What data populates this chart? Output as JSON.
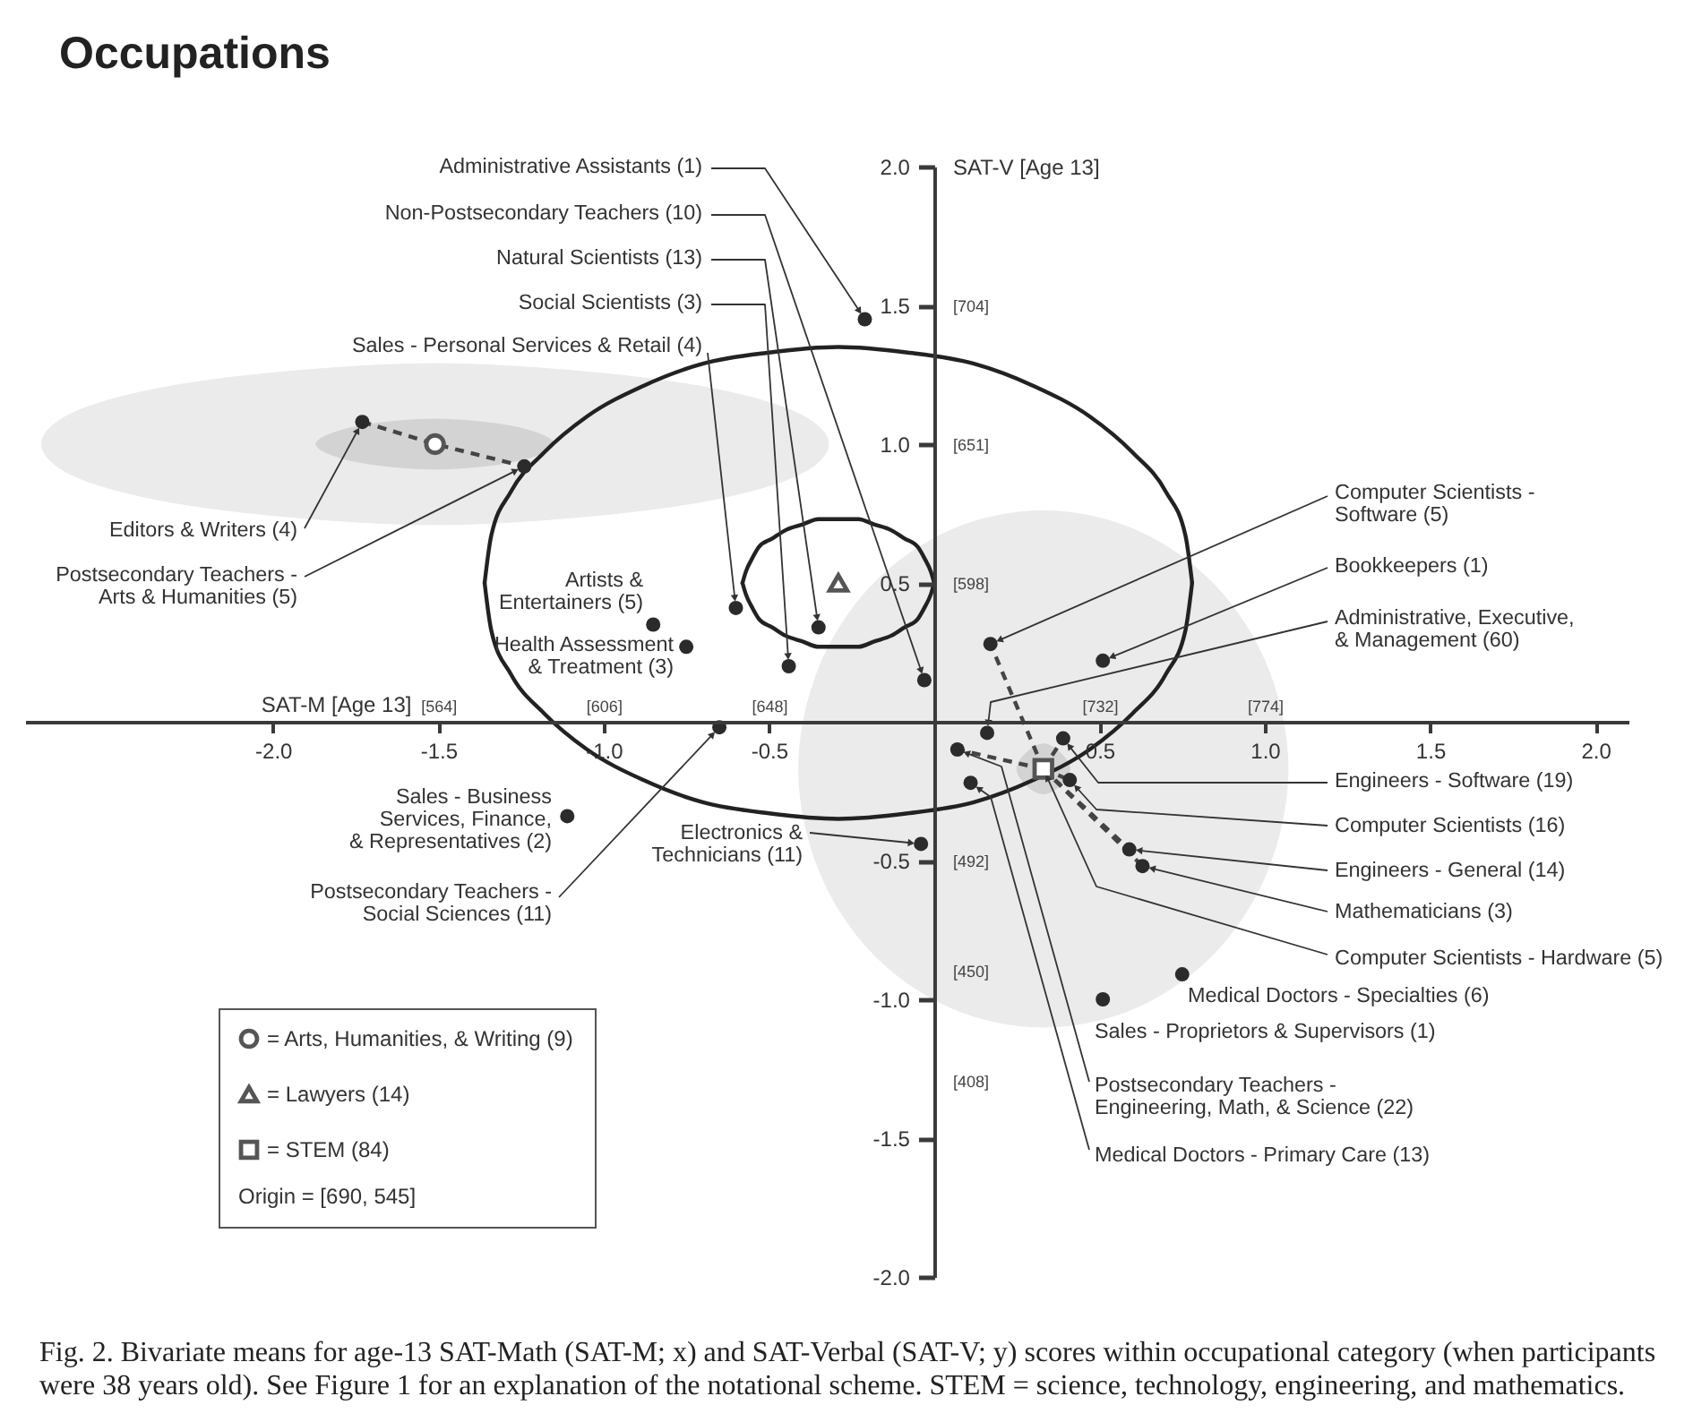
{
  "chart_data": {
    "type": "scatter",
    "title": "Occupations",
    "xlabel": "SAT-M [Age 13]",
    "y2label": "SAT-V [Age 13]",
    "legend": "bottom left",
    "legend_title": "Origin = [690, 545]",
    "xlim": [
      -2.75,
      2.1
    ],
    "xticks": [
      {
        "value": -2,
        "label": "-2.0"
      },
      -1.5,
      {
        "value": -1,
        "label": "-1.0"
      },
      -0.5,
      0.5,
      {
        "value": 1,
        "label": "1.0"
      },
      1.5,
      {
        "value": 2,
        "label": "2.0"
      }
    ],
    "ylim": [
      -2,
      2
    ],
    "yticks": [
      {
        "value": 2,
        "label": "2.0"
      },
      1.5,
      {
        "value": 1,
        "label": "1.0"
      },
      0.5,
      -0.5,
      {
        "value": -1,
        "label": "-1.0"
      },
      -1.5,
      {
        "value": -2,
        "label": "-2.0"
      }
    ],
    "x2lim": [
      459,
      866.4
    ],
    "x2ticks": [
      {
        "value": 564,
        "label": "[564]"
      },
      {
        "value": 606,
        "label": "[606]"
      },
      {
        "value": 648,
        "label": "[648]"
      },
      {
        "value": 732,
        "label": "[732]"
      },
      {
        "value": 774,
        "label": "[774]"
      }
    ],
    "y2lim": [
      333,
      757
    ],
    "y2ticks": [
      {
        "value": 704,
        "label": "[704]"
      },
      {
        "value": 651,
        "label": "[651]"
      },
      {
        "value": 598,
        "label": "[598]"
      },
      {
        "value": 492,
        "label": "[492]"
      },
      {
        "value": 450,
        "label": "[450]"
      },
      {
        "value": 408,
        "label": "[408]"
      }
    ],
    "series": [
      {
        "type": "area",
        "color": "#ebebeb",
        "x": [
          -0.32,
          -0.41,
          -0.67,
          -1.05,
          -1.51,
          -1.97,
          -2.35,
          -2.61,
          -2.7,
          -2.61,
          -2.35,
          -1.97,
          -1.51,
          -1.05,
          -0.67,
          -0.41,
          -0.32
        ],
        "values": [
          1.0,
          1.11,
          1.2,
          1.26,
          1.29,
          1.26,
          1.2,
          1.11,
          1.0,
          0.89,
          0.8,
          0.74,
          0.71,
          0.74,
          0.8,
          0.89,
          1.0
        ]
      },
      {
        "type": "area",
        "color": "#d3d3d3",
        "x": [
          -1.15,
          -1.18,
          -1.26,
          -1.37,
          -1.51,
          -1.65,
          -1.76,
          -1.84,
          -1.87,
          -1.84,
          -1.76,
          -1.65,
          -1.51,
          -1.37,
          -1.26,
          -1.18,
          -1.15
        ],
        "values": [
          1.0,
          1.03,
          1.06,
          1.08,
          1.09,
          1.08,
          1.06,
          1.03,
          1.0,
          0.97,
          0.94,
          0.92,
          0.91,
          0.92,
          0.94,
          0.97,
          1.0
        ]
      },
      {
        "type": "area",
        "color": "#ebebeb",
        "x": [
          1.07,
          1.01,
          0.85,
          0.61,
          0.33,
          0.05,
          -0.19,
          -0.35,
          -0.41,
          -0.35,
          -0.19,
          0.05,
          0.33,
          0.61,
          0.85,
          1.01,
          1.07
        ],
        "values": [
          -0.17,
          0.19,
          0.49,
          0.69,
          0.76,
          0.69,
          0.49,
          0.19,
          -0.17,
          -0.53,
          -0.83,
          -1.03,
          -1.1,
          -1.03,
          -0.83,
          -0.53,
          -0.17
        ]
      },
      {
        "type": "area",
        "color": "#d3d3d3",
        "x": [
          0.41,
          0.38,
          0.33,
          0.28,
          0.25,
          0.28,
          0.33,
          0.38,
          0.41
        ],
        "values": [
          -0.17,
          -0.11,
          -0.08,
          -0.11,
          -0.17,
          -0.23,
          -0.26,
          -0.23,
          -0.17
        ]
      },
      {
        "type": "line",
        "color": "#222222",
        "line_style": "solid",
        "marker": "none",
        "x": [
          -1.36,
          -1.34,
          -1.28,
          -1.18,
          -1.05,
          -0.88,
          -0.7,
          -0.5,
          -0.29,
          -0.08,
          0.12,
          0.3,
          0.47,
          0.6,
          0.7,
          0.76,
          0.78
        ],
        "values": [
          0.5,
          0.67,
          0.83,
          0.97,
          1.1,
          1.21,
          1.29,
          1.33,
          1.35,
          1.33,
          1.29,
          1.21,
          1.1,
          0.97,
          0.83,
          0.67,
          0.5
        ]
      },
      {
        "type": "line",
        "color": "#222222",
        "line_style": "solid",
        "marker": "none",
        "x": [
          -1.36,
          -1.34,
          -1.28,
          -1.18,
          -1.05,
          -0.88,
          -0.7,
          -0.5,
          -0.29,
          -0.08,
          0.12,
          0.3,
          0.47,
          0.6,
          0.7,
          0.76,
          0.78
        ],
        "values": [
          0.5,
          0.33,
          0.17,
          0.03,
          -0.1,
          -0.21,
          -0.29,
          -0.33,
          -0.35,
          -0.33,
          -0.29,
          -0.21,
          -0.1,
          0.03,
          0.17,
          0.33,
          0.5
        ]
      },
      {
        "type": "line",
        "color": "#222222",
        "line_style": "solid",
        "marker": "none",
        "x": [
          -0.58,
          -0.57,
          -0.55,
          -0.53,
          -0.49,
          -0.45,
          -0.4,
          -0.35,
          -0.29,
          -0.23,
          -0.18,
          -0.13,
          -0.09,
          -0.05,
          -0.03,
          -0.01,
          0.0
        ],
        "values": [
          0.5,
          0.54,
          0.59,
          0.63,
          0.66,
          0.69,
          0.71,
          0.73,
          0.73,
          0.73,
          0.71,
          0.69,
          0.66,
          0.63,
          0.59,
          0.54,
          0.5
        ]
      },
      {
        "type": "line",
        "color": "#222222",
        "line_style": "solid",
        "marker": "none",
        "x": [
          -0.58,
          -0.57,
          -0.55,
          -0.53,
          -0.49,
          -0.45,
          -0.4,
          -0.35,
          -0.29,
          -0.23,
          -0.18,
          -0.13,
          -0.09,
          -0.05,
          -0.03,
          -0.01,
          0.0
        ],
        "values": [
          0.5,
          0.46,
          0.41,
          0.37,
          0.34,
          0.31,
          0.29,
          0.27,
          0.27,
          0.27,
          0.29,
          0.31,
          0.34,
          0.37,
          0.41,
          0.46,
          0.5
        ]
      },
      {
        "type": "line",
        "color": "#444444",
        "line_style": "dashed",
        "marker": "none",
        "x": [
          -1.73,
          -1.51,
          -1.24
        ],
        "values": [
          1.08,
          1.0,
          0.92
        ]
      },
      {
        "type": "line",
        "color": "#444444",
        "line_style": "dashed",
        "marker": "none",
        "x": [
          0.33,
          0.17
        ],
        "values": [
          -0.17,
          0.28
        ]
      },
      {
        "type": "line",
        "color": "#444444",
        "line_style": "dashed",
        "marker": "none",
        "x": [
          0.33,
          0.07
        ],
        "values": [
          -0.17,
          -0.1
        ]
      },
      {
        "type": "line",
        "color": "#444444",
        "line_style": "dashed",
        "marker": "none",
        "x": [
          0.33,
          0.39
        ],
        "values": [
          -0.17,
          -0.06
        ]
      },
      {
        "type": "line",
        "color": "#444444",
        "line_style": "dashed",
        "marker": "none",
        "x": [
          0.33,
          0.41
        ],
        "values": [
          -0.17,
          -0.21
        ]
      },
      {
        "type": "line",
        "color": "#444444",
        "line_style": "dashed",
        "marker": "none",
        "x": [
          0.33,
          0.59
        ],
        "values": [
          -0.17,
          -0.46
        ]
      },
      {
        "type": "line",
        "color": "#444444",
        "line_style": "dashed",
        "marker": "none",
        "x": [
          0.33,
          0.63
        ],
        "values": [
          -0.17,
          -0.52
        ]
      },
      {
        "color": "#2b2b2b",
        "marker": "circle",
        "x": [
          -0.21,
          -0.03,
          -0.35,
          -0.44,
          -0.6,
          -1.73,
          -1.24,
          -0.85,
          -0.75,
          -1.11,
          -0.65,
          -0.04,
          0.17,
          0.51,
          0.16,
          0.39,
          0.41,
          0.59,
          0.63,
          0.75,
          0.51,
          0.07,
          0.11
        ],
        "values": [
          1.45,
          0.15,
          0.34,
          0.2,
          0.41,
          1.08,
          0.92,
          0.35,
          0.27,
          -0.34,
          -0.02,
          -0.44,
          0.28,
          0.22,
          -0.04,
          -0.06,
          -0.21,
          -0.46,
          -0.52,
          -0.91,
          -1.0,
          -0.1,
          -0.22
        ]
      },
      {
        "name": "= Arts, Humanities, & Writing (9)",
        "color": "#555555",
        "marker": "circle",
        "x": [
          -1.51
        ],
        "values": [
          1.0
        ]
      },
      {
        "name": "= Lawyers (14)",
        "color": "#555555",
        "marker": "triangle",
        "x": [
          -0.29
        ],
        "values": [
          0.5
        ]
      },
      {
        "name": "= STEM (84)",
        "color": "#555555",
        "marker": "square",
        "x": [
          0.33
        ],
        "values": [
          -0.17
        ]
      }
    ],
    "annotations": [
      {
        "text": "Administrative Assistants (1)",
        "x": -0.21,
        "y": 1.45
      },
      {
        "text": "Non-Postsecondary Teachers (10)",
        "x": -0.03,
        "y": 0.15
      },
      {
        "text": "Natural Scientists (13)",
        "x": -0.35,
        "y": 0.34
      },
      {
        "text": "Social Scientists (3)",
        "x": -0.44,
        "y": 0.2
      },
      {
        "text": "Sales - Personal Services & Retail (4)",
        "x": -0.6,
        "y": 0.41
      },
      {
        "text": "Editors & Writers (4)",
        "x": -1.73,
        "y": 1.08
      },
      {
        "text": "Postsecondary Teachers -\nArts & Humanities (5)",
        "x": -1.24,
        "y": 0.92
      },
      {
        "text": "Artists &\nEntertainers (5)",
        "x": -0.85,
        "y": 0.35
      },
      {
        "text": "Health Assessment\n& Treatment (3)",
        "x": -0.75,
        "y": 0.27
      },
      {
        "text": "Sales - Business\nServices, Finance,\n& Representatives (2)",
        "x": -1.11,
        "y": -0.34
      },
      {
        "text": "Postsecondary Teachers -\nSocial Sciences (11)",
        "x": -0.65,
        "y": -0.02
      },
      {
        "text": "Electronics &\nTechnicians (11)",
        "x": -0.04,
        "y": -0.44
      },
      {
        "text": "Computer Scientists -\nSoftware (5)",
        "x": 0.17,
        "y": 0.28
      },
      {
        "text": "Bookkeepers (1)",
        "x": 0.51,
        "y": 0.22
      },
      {
        "text": "Administrative, Executive,\n& Management (60)",
        "x": 0.16,
        "y": -0.04
      },
      {
        "text": "Engineers - Software (19)",
        "x": 0.39,
        "y": -0.06
      },
      {
        "text": "Computer Scientists (16)",
        "x": 0.41,
        "y": -0.21
      },
      {
        "text": "Engineers - General (14)",
        "x": 0.59,
        "y": -0.46
      },
      {
        "text": "Mathematicians (3)",
        "x": 0.63,
        "y": -0.52
      },
      {
        "text": "Computer Scientists - Hardware (5)",
        "x": 0.33,
        "y": -0.17
      },
      {
        "text": "Medical Doctors - Specialties (6)",
        "x": 0.75,
        "y": -0.91
      },
      {
        "text": "Sales - Proprietors & Supervisors (1)",
        "x": 0.51,
        "y": -1.0
      },
      {
        "text": "Postsecondary Teachers -\nEngineering, Math, & Science (22)",
        "x": 0.07,
        "y": -0.1
      },
      {
        "text": "Medical Doctors - Primary Care (13)",
        "x": 0.11,
        "y": -0.22
      },
      "Fig. 2. Bivariate means for age-13 SAT-Math (SAT-M; x) and SAT-Verbal (SAT-V; y) scores within occupational category (when participants\nwere 38 years old). See Figure 1 for an explanation of the notational scheme. STEM = science, technology, engineering, and mathematics."
    ]
  }
}
